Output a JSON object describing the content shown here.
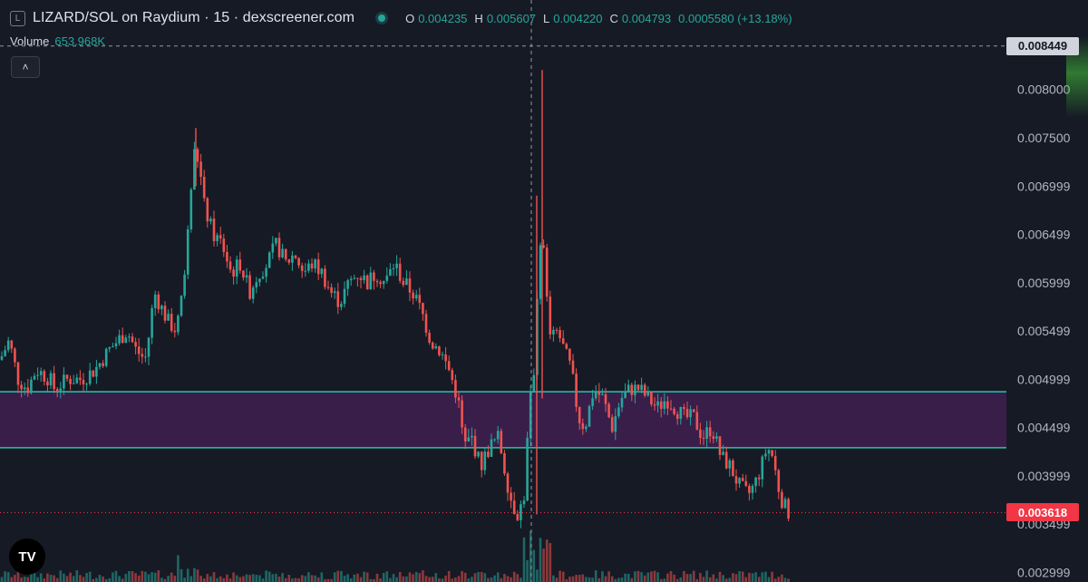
{
  "header": {
    "logo_letter": "L",
    "title": "LIZARD/SOL on Raydium · 15 · dexscreener.com",
    "ohlc": {
      "o_label": "O",
      "o_value": "0.004235",
      "h_label": "H",
      "h_value": "0.005607",
      "l_label": "L",
      "l_value": "0.004220",
      "c_label": "C",
      "c_value": "0.004793",
      "change": "0.0005580 (+13.18%)"
    }
  },
  "volume": {
    "label": "Volume",
    "value": "653.968K"
  },
  "collapse_icon": "chevron-up-icon",
  "tv_logo_text": "TV",
  "colors": {
    "up": "#26a69a",
    "down": "#ef5350",
    "zone": "#3d1f4f",
    "zone_line": "#26c6ac",
    "bg": "#161a25"
  },
  "chart_data": {
    "type": "candlestick",
    "title": "LIZARD/SOL on Raydium · 15 · dexscreener.com",
    "ylim": [
      0.0029,
      0.00855
    ],
    "y_ticks": [
      "0.008000",
      "0.007500",
      "0.006999",
      "0.006499",
      "0.005999",
      "0.005499",
      "0.004999",
      "0.004499",
      "0.003999",
      "0.003499",
      "0.002999"
    ],
    "y_tick_values": [
      0.008,
      0.0075,
      0.006999,
      0.006499,
      0.005999,
      0.005499,
      0.004999,
      0.004499,
      0.003999,
      0.003499,
      0.002999
    ],
    "crosshair_price": "0.008449",
    "current_price": "0.003618",
    "zone": {
      "top": 0.00487,
      "bottom": 0.00429
    },
    "close_path": [
      [
        0,
        0.0052
      ],
      [
        10,
        0.0054
      ],
      [
        20,
        0.005
      ],
      [
        30,
        0.0049
      ],
      [
        40,
        0.0051
      ],
      [
        55,
        0.005
      ],
      [
        60,
        0.0049
      ],
      [
        75,
        0.005
      ],
      [
        90,
        0.005
      ],
      [
        105,
        0.0051
      ],
      [
        120,
        0.0053
      ],
      [
        130,
        0.0054
      ],
      [
        140,
        0.0055
      ],
      [
        150,
        0.0053
      ],
      [
        160,
        0.0052
      ],
      [
        165,
        0.0055
      ],
      [
        170,
        0.0059
      ],
      [
        185,
        0.0056
      ],
      [
        195,
        0.0055
      ],
      [
        205,
        0.0062
      ],
      [
        210,
        0.0069
      ],
      [
        215,
        0.0074
      ],
      [
        220,
        0.0072
      ],
      [
        225,
        0.0068
      ],
      [
        235,
        0.0065
      ],
      [
        245,
        0.0064
      ],
      [
        255,
        0.0061
      ],
      [
        265,
        0.0062
      ],
      [
        275,
        0.0059
      ],
      [
        285,
        0.0061
      ],
      [
        295,
        0.0062
      ],
      [
        305,
        0.0064
      ],
      [
        315,
        0.0062
      ],
      [
        325,
        0.0063
      ],
      [
        335,
        0.0061
      ],
      [
        345,
        0.0062
      ],
      [
        355,
        0.0061
      ],
      [
        365,
        0.0059
      ],
      [
        375,
        0.0058
      ],
      [
        385,
        0.006
      ],
      [
        395,
        0.0061
      ],
      [
        405,
        0.006
      ],
      [
        415,
        0.0061
      ],
      [
        425,
        0.006
      ],
      [
        435,
        0.0062
      ],
      [
        445,
        0.006
      ],
      [
        455,
        0.0059
      ],
      [
        465,
        0.0057
      ],
      [
        475,
        0.0054
      ],
      [
        485,
        0.0053
      ],
      [
        495,
        0.0051
      ],
      [
        505,
        0.0048
      ],
      [
        512,
        0.0043
      ],
      [
        520,
        0.0044
      ],
      [
        530,
        0.0041
      ],
      [
        540,
        0.0043
      ],
      [
        550,
        0.0044
      ],
      [
        558,
        0.004
      ],
      [
        565,
        0.0037
      ],
      [
        572,
        0.0036
      ],
      [
        578,
        0.0038
      ],
      [
        584,
        0.0047
      ],
      [
        590,
        0.0052
      ],
      [
        594,
        0.0063
      ],
      [
        598,
        0.0066
      ],
      [
        602,
        0.0059
      ],
      [
        608,
        0.0054
      ],
      [
        615,
        0.0055
      ],
      [
        622,
        0.0053
      ],
      [
        630,
        0.0051
      ],
      [
        638,
        0.0046
      ],
      [
        645,
        0.0045
      ],
      [
        655,
        0.0049
      ],
      [
        665,
        0.0048
      ],
      [
        675,
        0.0045
      ],
      [
        685,
        0.0048
      ],
      [
        695,
        0.0049
      ],
      [
        705,
        0.0049
      ],
      [
        715,
        0.0048
      ],
      [
        725,
        0.0047
      ],
      [
        735,
        0.0048
      ],
      [
        745,
        0.0047
      ],
      [
        755,
        0.0046
      ],
      [
        765,
        0.0046
      ],
      [
        775,
        0.0044
      ],
      [
        785,
        0.0045
      ],
      [
        795,
        0.0042
      ],
      [
        805,
        0.0041
      ],
      [
        815,
        0.0039
      ],
      [
        825,
        0.0038
      ],
      [
        832,
        0.0039
      ],
      [
        840,
        0.0041
      ],
      [
        846,
        0.0043
      ],
      [
        852,
        0.0042
      ],
      [
        858,
        0.0039
      ],
      [
        864,
        0.0037
      ],
      [
        870,
        0.00362
      ]
    ],
    "spikes": [
      [
        592,
        0.0036,
        0.0069
      ],
      [
        598,
        0.0048,
        0.0082
      ],
      [
        216,
        0.007,
        0.0076
      ]
    ]
  }
}
